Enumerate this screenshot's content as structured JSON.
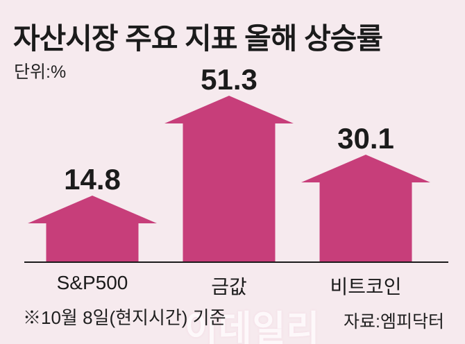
{
  "title": "자산시장 주요 지표 올해 상승률",
  "unit_label": "단위:%",
  "footnote": "※10월 8일(현지시간) 기준",
  "source": "자료:엠피닥터",
  "watermark": "이데일리",
  "colors": {
    "background": "#f6eaee",
    "arrow": "#c73e7a",
    "text": "#1b1b1b",
    "axis": "#1a1a1a"
  },
  "chart_data": {
    "type": "bar",
    "variant": "up-arrow-pictogram",
    "title": "자산시장 주요 지표 올해 상승률",
    "unit": "%",
    "categories": [
      "S&P500",
      "금값",
      "비트코인"
    ],
    "values": [
      14.8,
      51.3,
      30.1
    ],
    "value_labels": [
      "14.8",
      "51.3",
      "30.1"
    ],
    "ylim": [
      0,
      55
    ],
    "grid": false,
    "legend": false,
    "value_label_position": "above-arrow-tip"
  }
}
